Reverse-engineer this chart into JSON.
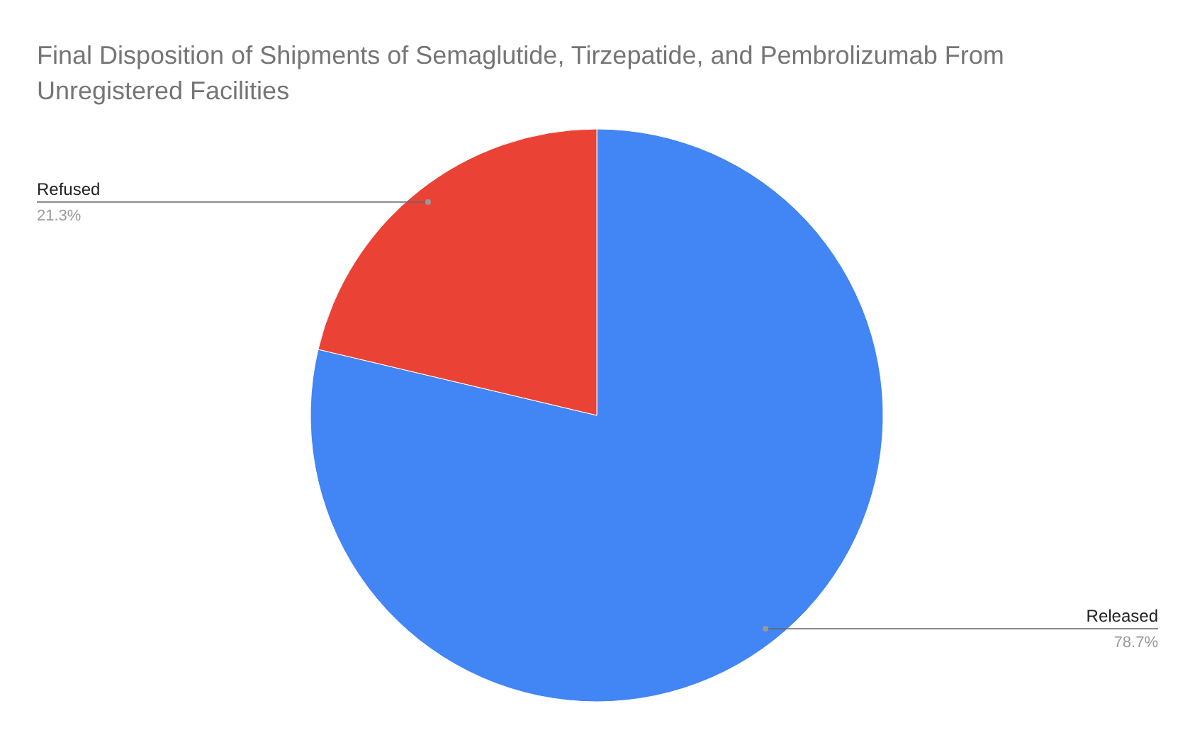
{
  "chart_data": {
    "type": "pie",
    "title": "Final Disposition of Shipments of Semaglutide, Tirzepatide, and Pembrolizumab From Unregistered Facilities",
    "categories": [
      "Released",
      "Refused"
    ],
    "values": [
      78.7,
      21.3
    ],
    "colors": [
      "#4285f4",
      "#ea4335"
    ],
    "value_labels": [
      "78.7%",
      "21.3%"
    ]
  }
}
